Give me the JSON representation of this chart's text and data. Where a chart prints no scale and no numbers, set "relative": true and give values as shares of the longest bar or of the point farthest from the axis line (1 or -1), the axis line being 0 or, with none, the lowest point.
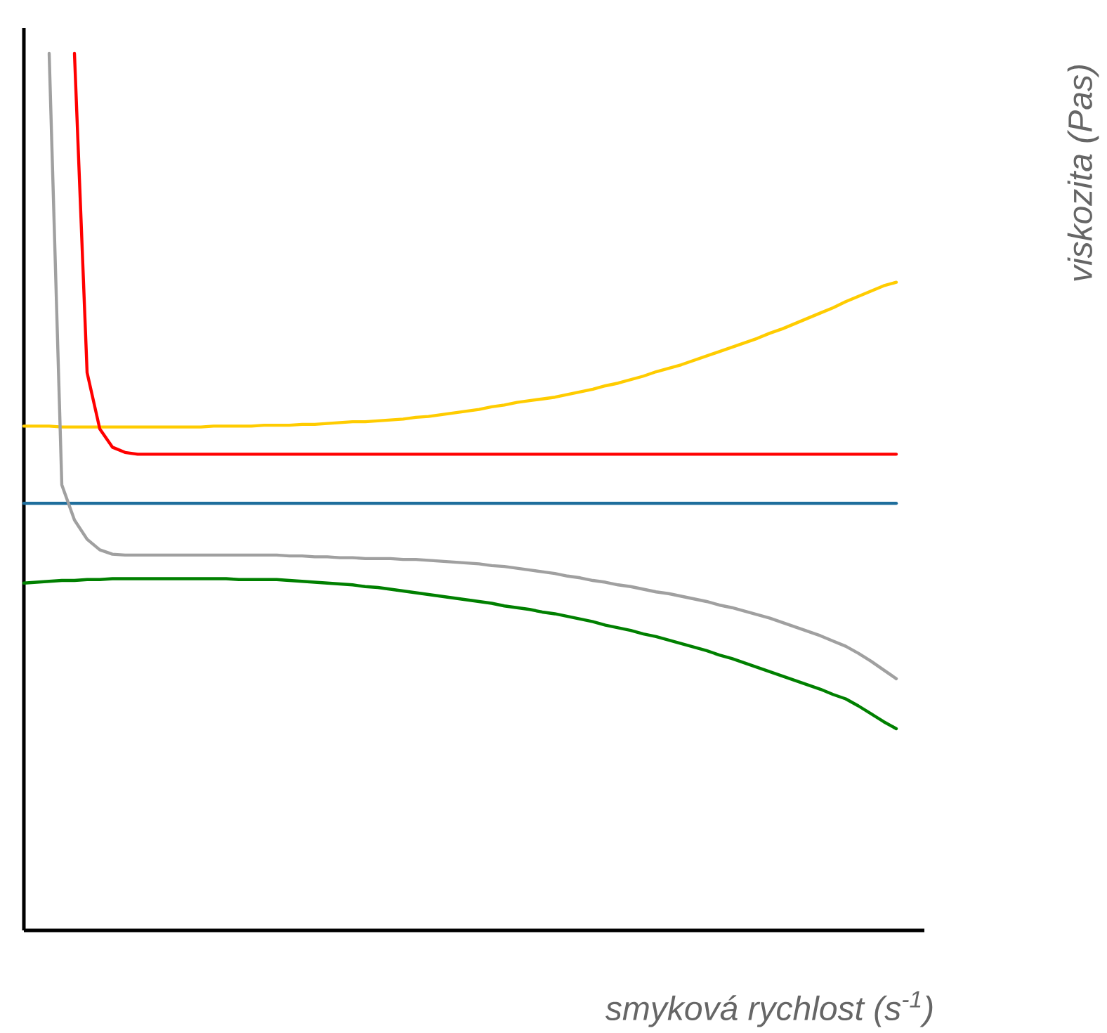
{
  "chart_data": {
    "type": "line",
    "relative": true,
    "xlabel": "smyková rychlost (s$^{-1}$)",
    "annotations": [
      "viskozita (Pas)"
    ],
    "categories": [
      null,
      null,
      null,
      null,
      null,
      null,
      null,
      null,
      null,
      null,
      null,
      null,
      null,
      null,
      null,
      null,
      null,
      null,
      null,
      null,
      null,
      null,
      null,
      null,
      null,
      null,
      null,
      null,
      null,
      null,
      null,
      null,
      null,
      null,
      null,
      null,
      null,
      null,
      null,
      null,
      null,
      null,
      null,
      null,
      null,
      null,
      null,
      null,
      null,
      null,
      null,
      null,
      null,
      null,
      null,
      null,
      null,
      null,
      null,
      null,
      null,
      null,
      null,
      null,
      null,
      null,
      null,
      null,
      null,
      null
    ],
    "series": [
      {
        "color": "#ffcc00",
        "values": [
          0.575,
          0.575,
          0.575,
          0.574,
          0.574,
          0.574,
          0.574,
          0.574,
          0.574,
          0.574,
          0.574,
          0.574,
          0.574,
          0.574,
          0.574,
          0.575,
          0.575,
          0.575,
          0.575,
          0.576,
          0.576,
          0.576,
          0.577,
          0.577,
          0.578,
          0.579,
          0.58,
          0.58,
          0.581,
          0.582,
          0.583,
          0.585,
          0.586,
          0.588,
          0.59,
          0.592,
          0.594,
          0.597,
          0.599,
          0.602,
          0.604,
          0.606,
          0.608,
          0.611,
          0.614,
          0.617,
          0.621,
          0.624,
          0.628,
          0.632,
          0.637,
          0.641,
          0.645,
          0.65,
          0.655,
          0.66,
          0.665,
          0.67,
          0.675,
          0.681,
          0.686,
          0.692,
          0.698,
          0.704,
          0.71,
          0.717,
          0.723,
          0.729,
          0.735,
          0.739
        ]
      },
      {
        "color": "#ff0000",
        "values": [
          null,
          null,
          null,
          null,
          1.0,
          0.636,
          0.572,
          0.551,
          0.545,
          0.543,
          0.543,
          0.543,
          0.543,
          0.543,
          0.543,
          0.543,
          0.543,
          0.543,
          0.543,
          0.543,
          0.543,
          0.543,
          0.543,
          0.543,
          0.543,
          0.543,
          0.543,
          0.543,
          0.543,
          0.543,
          0.543,
          0.543,
          0.543,
          0.543,
          0.543,
          0.543,
          0.543,
          0.543,
          0.543,
          0.543,
          0.543,
          0.543,
          0.543,
          0.543,
          0.543,
          0.543,
          0.543,
          0.543,
          0.543,
          0.543,
          0.543,
          0.543,
          0.543,
          0.543,
          0.543,
          0.543,
          0.543,
          0.543,
          0.543,
          0.543,
          0.543,
          0.543,
          0.543,
          0.543,
          0.543,
          0.543,
          0.543,
          0.543,
          0.543,
          0.543
        ]
      },
      {
        "color": "#1f6e9c",
        "values": [
          0.487,
          0.487,
          0.487,
          0.487,
          0.487,
          0.487,
          0.487,
          0.487,
          0.487,
          0.487,
          0.487,
          0.487,
          0.487,
          0.487,
          0.487,
          0.487,
          0.487,
          0.487,
          0.487,
          0.487,
          0.487,
          0.487,
          0.487,
          0.487,
          0.487,
          0.487,
          0.487,
          0.487,
          0.487,
          0.487,
          0.487,
          0.487,
          0.487,
          0.487,
          0.487,
          0.487,
          0.487,
          0.487,
          0.487,
          0.487,
          0.487,
          0.487,
          0.487,
          0.487,
          0.487,
          0.487,
          0.487,
          0.487,
          0.487,
          0.487,
          0.487,
          0.487,
          0.487,
          0.487,
          0.487,
          0.487,
          0.487,
          0.487,
          0.487,
          0.487,
          0.487,
          0.487,
          0.487,
          0.487,
          0.487,
          0.487,
          0.487,
          0.487,
          0.487,
          0.487
        ]
      },
      {
        "color": "#a0a0a0",
        "values": [
          null,
          null,
          1.0,
          0.508,
          0.468,
          0.446,
          0.434,
          0.429,
          0.428,
          0.428,
          0.428,
          0.428,
          0.428,
          0.428,
          0.428,
          0.428,
          0.428,
          0.428,
          0.428,
          0.428,
          0.428,
          0.427,
          0.427,
          0.426,
          0.426,
          0.425,
          0.425,
          0.424,
          0.424,
          0.424,
          0.423,
          0.423,
          0.422,
          0.421,
          0.42,
          0.419,
          0.418,
          0.416,
          0.415,
          0.413,
          0.411,
          0.409,
          0.407,
          0.404,
          0.402,
          0.399,
          0.397,
          0.394,
          0.392,
          0.389,
          0.386,
          0.384,
          0.381,
          0.378,
          0.375,
          0.371,
          0.368,
          0.364,
          0.36,
          0.356,
          0.351,
          0.346,
          0.341,
          0.336,
          0.33,
          0.324,
          0.316,
          0.307,
          0.297,
          0.287
        ]
      },
      {
        "color": "#008000",
        "values": [
          0.396,
          0.397,
          0.398,
          0.399,
          0.399,
          0.4,
          0.4,
          0.401,
          0.401,
          0.401,
          0.401,
          0.401,
          0.401,
          0.401,
          0.401,
          0.401,
          0.401,
          0.4,
          0.4,
          0.4,
          0.4,
          0.399,
          0.398,
          0.397,
          0.396,
          0.395,
          0.394,
          0.392,
          0.391,
          0.389,
          0.387,
          0.385,
          0.383,
          0.381,
          0.379,
          0.377,
          0.375,
          0.373,
          0.37,
          0.368,
          0.366,
          0.363,
          0.361,
          0.358,
          0.355,
          0.352,
          0.348,
          0.345,
          0.342,
          0.338,
          0.335,
          0.331,
          0.327,
          0.323,
          0.319,
          0.314,
          0.31,
          0.305,
          0.3,
          0.295,
          0.29,
          0.285,
          0.28,
          0.275,
          0.269,
          0.264,
          0.256,
          0.247,
          0.238,
          0.23
        ]
      }
    ]
  }
}
